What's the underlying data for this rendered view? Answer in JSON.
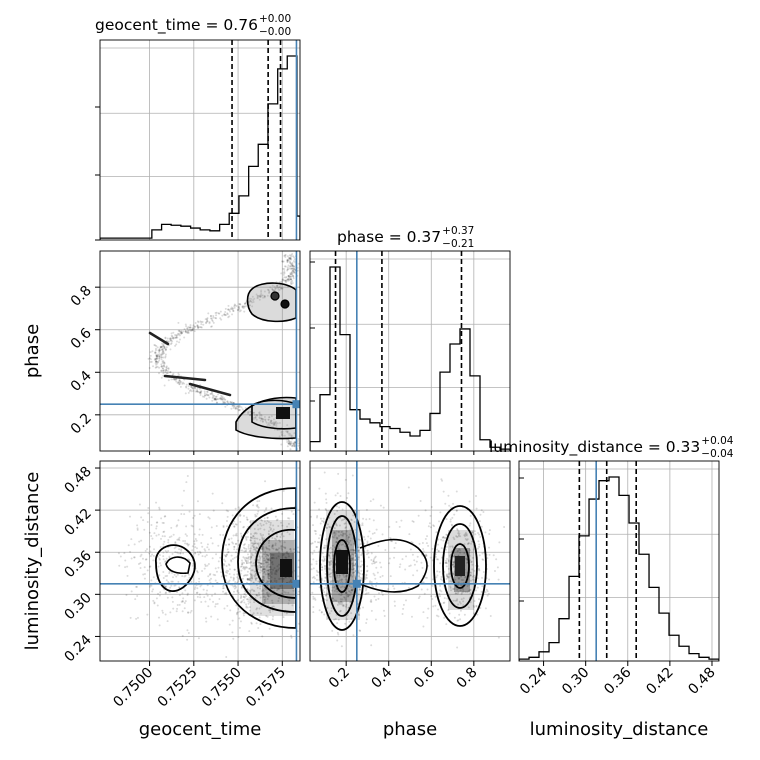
{
  "chart_data": {
    "type": "corner",
    "parameters": [
      "geocent_time",
      "phase",
      "luminosity_distance"
    ],
    "axis_labels": {
      "geocent_time": "geocent_time",
      "phase": "phase",
      "luminosity_distance": "luminosity_distance"
    },
    "ranges": {
      "geocent_time": [
        0.7472,
        0.7585
      ],
      "phase": [
        0.03,
        0.97
      ],
      "luminosity_distance": [
        0.205,
        0.49
      ]
    },
    "ticks": {
      "geocent_time": {
        "values": [
          0.75,
          0.7525,
          0.755,
          0.7575
        ],
        "labels": [
          "0.7500",
          "0.7525",
          "0.7550",
          "0.7575"
        ]
      },
      "phase": {
        "values": [
          0.2,
          0.4,
          0.6,
          0.8
        ],
        "labels": [
          "0.2",
          "0.4",
          "0.6",
          "0.8"
        ]
      },
      "luminosity_distance": {
        "values": [
          0.24,
          0.3,
          0.36,
          0.42,
          0.48
        ],
        "labels": [
          "0.24",
          "0.30",
          "0.36",
          "0.42",
          "0.48"
        ]
      }
    },
    "truths": {
      "geocent_time": 0.7583,
      "phase": 0.25,
      "luminosity_distance": 0.315
    },
    "titles": [
      {
        "param": "geocent_time",
        "main": "geocent_time = 0.76",
        "plus": "+0.00",
        "minus": "−0.00"
      },
      {
        "param": "phase",
        "main": "phase = 0.37",
        "plus": "+0.37",
        "minus": "−0.21"
      },
      {
        "param": "luminosity_distance",
        "main": "luminosity_distance = 0.33",
        "plus": "+0.04",
        "minus": "−0.04"
      }
    ],
    "histograms": {
      "geocent_time": {
        "bins": [
          0.7472,
          0.75013,
          0.75068,
          0.75122,
          0.75177,
          0.75232,
          0.75286,
          0.75341,
          0.75396,
          0.7545,
          0.75505,
          0.7556,
          0.75614,
          0.75669,
          0.75724,
          0.75778,
          0.75833,
          0.7585
        ],
        "heights": [
          0.01,
          0.055,
          0.085,
          0.08,
          0.075,
          0.065,
          0.055,
          0.05,
          0.085,
          0.145,
          0.24,
          0.4,
          0.52,
          0.74,
          0.93,
          1.0,
          0.13
        ],
        "quantiles": [
          0.75466,
          0.7567,
          0.7574
        ]
      },
      "phase": {
        "bins": [
          0.03,
          0.077,
          0.124,
          0.171,
          0.218,
          0.265,
          0.312,
          0.359,
          0.406,
          0.453,
          0.5,
          0.547,
          0.594,
          0.641,
          0.688,
          0.735,
          0.782,
          0.829,
          0.876,
          0.923,
          0.97
        ],
        "heights": [
          0.05,
          0.3,
          0.98,
          0.62,
          0.22,
          0.17,
          0.15,
          0.13,
          0.12,
          0.1,
          0.08,
          0.11,
          0.2,
          0.42,
          0.57,
          0.65,
          0.4,
          0.06,
          0.02,
          0.01
        ],
        "quantiles": [
          0.15,
          0.368,
          0.742
        ]
      },
      "luminosity_distance": {
        "bins": [
          0.205,
          0.2193,
          0.2335,
          0.2478,
          0.262,
          0.2763,
          0.2905,
          0.3048,
          0.319,
          0.3333,
          0.3475,
          0.3618,
          0.376,
          0.3903,
          0.4045,
          0.4188,
          0.433,
          0.4473,
          0.4615,
          0.4758,
          0.49
        ],
        "heights": [
          0.01,
          0.02,
          0.05,
          0.1,
          0.23,
          0.46,
          0.68,
          0.88,
          0.98,
          1.0,
          0.9,
          0.75,
          0.58,
          0.4,
          0.26,
          0.14,
          0.08,
          0.04,
          0.02,
          0.01
        ],
        "quantiles": [
          0.291,
          0.33,
          0.372
        ]
      }
    },
    "grid": true,
    "colors": {
      "truth": "#4682b4",
      "line": "#000000",
      "grid": "#b0b0b0"
    }
  }
}
